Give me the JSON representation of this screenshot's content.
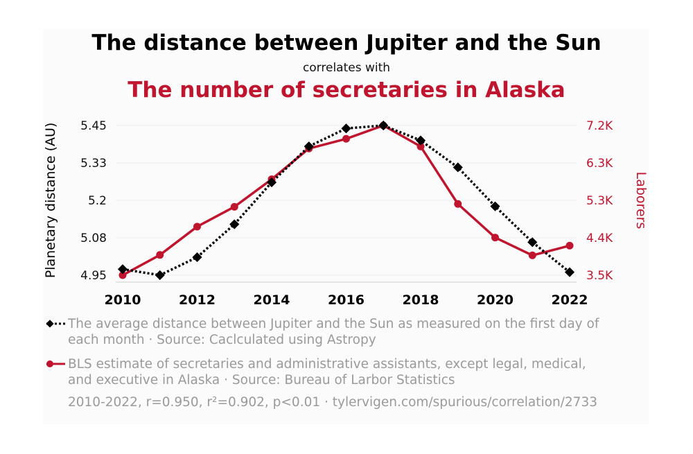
{
  "header": {
    "title": "The distance between Jupiter and the Sun",
    "connector": "correlates with",
    "subtitle": "The number of secretaries in Alaska"
  },
  "legend": {
    "series1_text": "The average distance between Jupiter and the Sun as measured on the first day of\neach month · Source: Caclculated using Astropy",
    "series2_text": "BLS estimate of secretaries and administrative assistants, except legal, medical,\nand executive in Alaska · Source: Bureau of Larbor Statistics"
  },
  "footer": "2010-2022, r=0.950, r²=0.902, p<0.01 · tylervigen.com/spurious/correlation/2733",
  "colors": {
    "series1": "#000000",
    "series2": "#c0152f",
    "grid": "#eeeeee"
  },
  "chart_data": {
    "type": "line",
    "x": [
      2010,
      2011,
      2012,
      2013,
      2014,
      2015,
      2016,
      2017,
      2018,
      2019,
      2020,
      2021,
      2022
    ],
    "x_ticks": [
      "2010",
      "2012",
      "2014",
      "2016",
      "2018",
      "2020",
      "2022"
    ],
    "xlim": [
      2010,
      2022
    ],
    "ylabel_left": "Planetary distance (AU)",
    "ylabel_right": "Laborers",
    "yticks_left": [
      "4.95",
      "5.08",
      "5.2",
      "5.33",
      "5.45"
    ],
    "ylim_left": [
      4.95,
      5.45
    ],
    "yticks_right": [
      "3.5K",
      "4.4K",
      "5.3K",
      "6.3K",
      "7.2K"
    ],
    "ylim_right": [
      3500,
      7200
    ],
    "grid": true,
    "series": [
      {
        "axis": "left",
        "style": "dotted",
        "marker": "diamond",
        "values": [
          4.97,
          4.95,
          5.01,
          5.12,
          5.26,
          5.38,
          5.44,
          5.45,
          5.4,
          5.31,
          5.18,
          5.06,
          4.96
        ]
      },
      {
        "axis": "right",
        "style": "solid",
        "marker": "circle",
        "values": [
          3500,
          4000,
          4700,
          5190,
          5870,
          6630,
          6870,
          7200,
          6680,
          5260,
          4430,
          3990,
          4230
        ]
      }
    ]
  }
}
